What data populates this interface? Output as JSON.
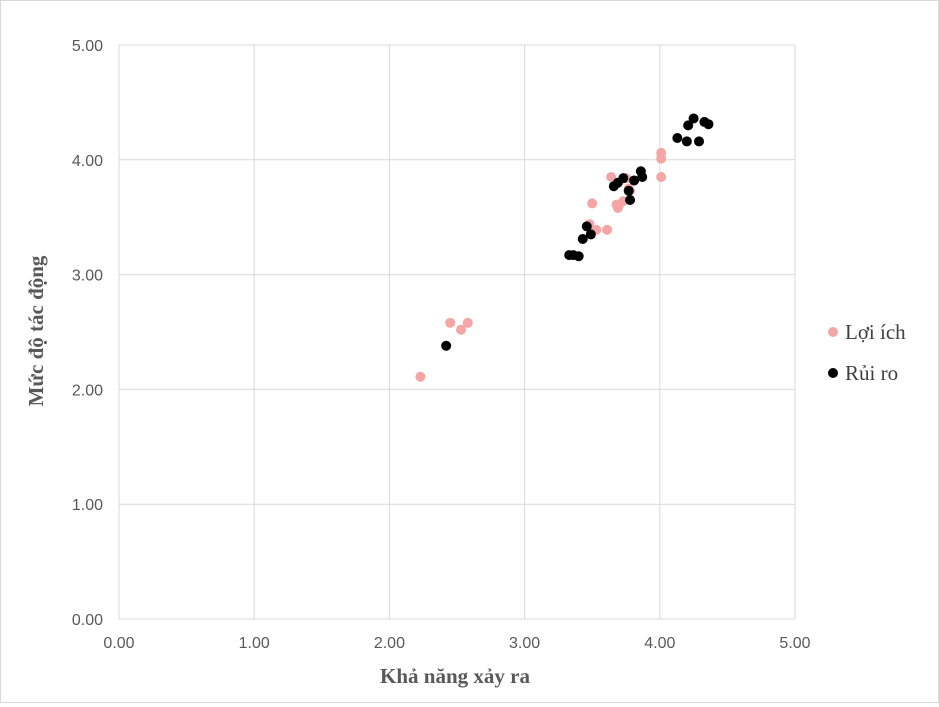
{
  "chart_data": {
    "type": "scatter",
    "xlabel": "Khả năng xảy ra",
    "ylabel": "Mức độ tác động",
    "xlim": [
      0,
      5
    ],
    "ylim": [
      0,
      5
    ],
    "x_ticks": [
      "0.00",
      "1.00",
      "2.00",
      "3.00",
      "4.00",
      "5.00"
    ],
    "y_ticks": [
      "0.00",
      "1.00",
      "2.00",
      "3.00",
      "4.00",
      "5.00"
    ],
    "grid": true,
    "legend_position": "right",
    "series": [
      {
        "name": "Lợi ích",
        "color": "#f4a6a6",
        "points": [
          [
            2.23,
            2.11
          ],
          [
            2.45,
            2.58
          ],
          [
            2.53,
            2.52
          ],
          [
            2.58,
            2.58
          ],
          [
            3.48,
            3.44
          ],
          [
            3.5,
            3.62
          ],
          [
            3.53,
            3.39
          ],
          [
            3.61,
            3.39
          ],
          [
            3.64,
            3.85
          ],
          [
            3.68,
            3.61
          ],
          [
            3.69,
            3.58
          ],
          [
            3.7,
            3.61
          ],
          [
            3.73,
            3.64
          ],
          [
            3.75,
            3.84
          ],
          [
            3.77,
            3.75
          ],
          [
            3.78,
            3.73
          ],
          [
            4.01,
            4.06
          ],
          [
            4.01,
            4.01
          ],
          [
            4.01,
            3.85
          ]
        ]
      },
      {
        "name": "Rủi ro",
        "color": "#000000",
        "points": [
          [
            2.42,
            2.38
          ],
          [
            3.33,
            3.17
          ],
          [
            3.36,
            3.17
          ],
          [
            3.4,
            3.16
          ],
          [
            3.43,
            3.31
          ],
          [
            3.46,
            3.42
          ],
          [
            3.49,
            3.35
          ],
          [
            3.66,
            3.77
          ],
          [
            3.69,
            3.8
          ],
          [
            3.73,
            3.84
          ],
          [
            3.77,
            3.73
          ],
          [
            3.78,
            3.65
          ],
          [
            3.81,
            3.82
          ],
          [
            3.86,
            3.9
          ],
          [
            3.87,
            3.85
          ],
          [
            4.13,
            4.19
          ],
          [
            4.2,
            4.16
          ],
          [
            4.21,
            4.3
          ],
          [
            4.25,
            4.36
          ],
          [
            4.29,
            4.16
          ],
          [
            4.33,
            4.33
          ],
          [
            4.36,
            4.31
          ]
        ]
      }
    ]
  }
}
